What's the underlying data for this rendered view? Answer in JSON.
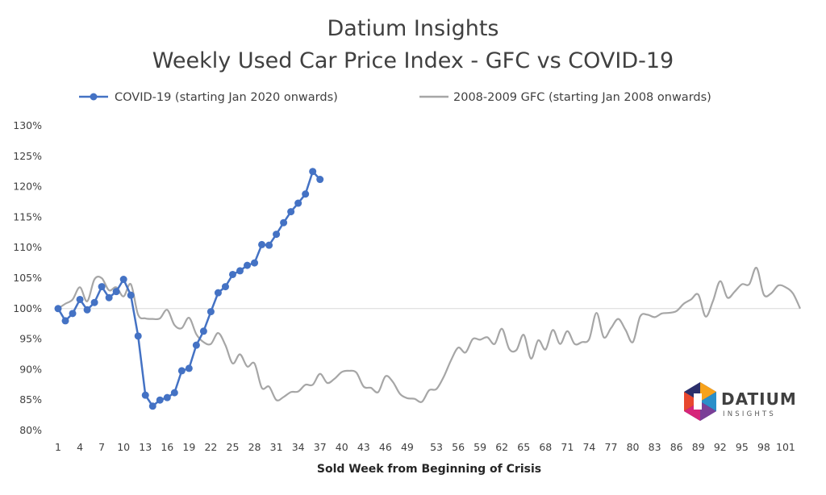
{
  "chart_data": {
    "type": "line",
    "title": "Datium Insights",
    "subtitle": "Weekly Used Car Price Index - GFC vs COVID-19",
    "xlabel": "Sold Week from Beginning of Crisis",
    "ylabel": "",
    "ylim": [
      80,
      130
    ],
    "xlim": [
      1,
      103
    ],
    "y_ticks": [
      "80%",
      "85%",
      "90%",
      "95%",
      "100%",
      "105%",
      "110%",
      "115%",
      "120%",
      "125%",
      "130%"
    ],
    "x_ticks": [
      "1",
      "4",
      "7",
      "10",
      "13",
      "16",
      "19",
      "22",
      "25",
      "28",
      "31",
      "34",
      "37",
      "40",
      "43",
      "46",
      "49",
      "53",
      "56",
      "59",
      "62",
      "65",
      "68",
      "71",
      "74",
      "77",
      "80",
      "83",
      "86",
      "89",
      "92",
      "95",
      "98",
      "101"
    ],
    "legend_position": "top",
    "grid": false,
    "reference_line": 100,
    "series": [
      {
        "name": "COVID-19 (starting Jan 2020 onwards)",
        "color": "#4472c4",
        "marker": "circle",
        "x": [
          1,
          2,
          3,
          4,
          5,
          6,
          7,
          8,
          9,
          10,
          11,
          12,
          13,
          14,
          15,
          16,
          17,
          18,
          19,
          20,
          21,
          22,
          23,
          24,
          25,
          26,
          27,
          28,
          29,
          30,
          31,
          32,
          33,
          34,
          35,
          36,
          37
        ],
        "values": [
          100,
          98,
          99.2,
          101.5,
          99.8,
          101,
          103.6,
          101.8,
          102.8,
          104.8,
          102.2,
          95.5,
          85.8,
          84,
          85,
          85.4,
          86.2,
          89.8,
          90.2,
          94,
          96.3,
          99.5,
          102.6,
          103.6,
          105.6,
          106.2,
          107.1,
          107.5,
          110.5,
          110.4,
          112.2,
          114.1,
          115.9,
          117.3,
          118.8,
          122.5,
          121.2
        ]
      },
      {
        "name": "2008-2009 GFC (starting Jan 2008 onwards)",
        "color": "#a6a6a6",
        "marker": "none",
        "x": [
          1,
          2,
          3,
          4,
          5,
          6,
          7,
          8,
          9,
          10,
          11,
          12,
          13,
          14,
          15,
          16,
          17,
          18,
          19,
          20,
          21,
          22,
          23,
          24,
          25,
          26,
          27,
          28,
          29,
          30,
          31,
          32,
          33,
          34,
          35,
          36,
          37,
          38,
          39,
          40,
          41,
          42,
          43,
          44,
          45,
          46,
          47,
          48,
          49,
          50,
          51,
          52,
          53,
          54,
          55,
          56,
          57,
          58,
          59,
          60,
          61,
          62,
          63,
          64,
          65,
          66,
          67,
          68,
          69,
          70,
          71,
          72,
          73,
          74,
          75,
          76,
          77,
          78,
          79,
          80,
          81,
          82,
          83,
          84,
          85,
          86,
          87,
          88,
          89,
          90,
          91,
          92,
          93,
          94,
          95,
          96,
          97,
          98,
          99,
          100,
          101,
          102,
          103
        ],
        "values": [
          100,
          100.8,
          101.5,
          103.5,
          101.2,
          104.8,
          105,
          103,
          103.5,
          102,
          104,
          99,
          98.4,
          98.3,
          98.4,
          99.8,
          97.3,
          96.8,
          98.5,
          95.8,
          94.5,
          94.2,
          96,
          94,
          91,
          92.5,
          90.5,
          91,
          87,
          87.2,
          85,
          85.5,
          86.3,
          86.4,
          87.5,
          87.5,
          89.3,
          87.8,
          88.5,
          89.6,
          89.8,
          89.5,
          87.2,
          87,
          86.3,
          88.9,
          88,
          86,
          85.3,
          85.2,
          84.7,
          86.6,
          86.8,
          88.8,
          91.5,
          93.6,
          92.8,
          95,
          94.9,
          95.3,
          94.2,
          96.7,
          93.4,
          93.2,
          95.7,
          91.8,
          94.8,
          93.3,
          96.5,
          94.2,
          96.3,
          94.2,
          94.5,
          95,
          99.3,
          95.3,
          96.8,
          98.3,
          96.5,
          94.5,
          98.7,
          99,
          98.6,
          99.2,
          99.3,
          99.6,
          100.8,
          101.5,
          102.3,
          98.7,
          101.2,
          104.5,
          101.8,
          102.8,
          104,
          104,
          106.7,
          102.3,
          102.5,
          103.8,
          103.5,
          102.5,
          100
        ]
      }
    ]
  },
  "logo": {
    "word": "DATIUM",
    "sub": "INSIGHTS"
  }
}
